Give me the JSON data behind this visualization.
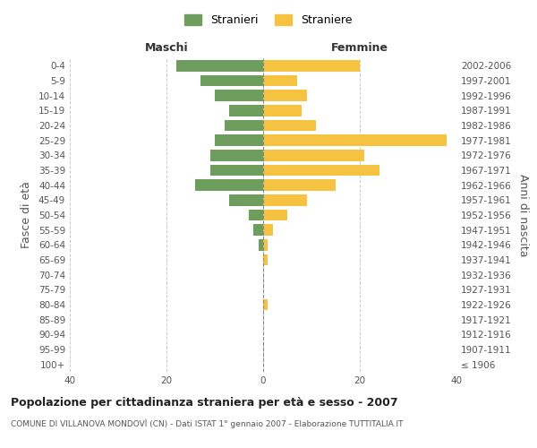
{
  "age_groups": [
    "100+",
    "95-99",
    "90-94",
    "85-89",
    "80-84",
    "75-79",
    "70-74",
    "65-69",
    "60-64",
    "55-59",
    "50-54",
    "45-49",
    "40-44",
    "35-39",
    "30-34",
    "25-29",
    "20-24",
    "15-19",
    "10-14",
    "5-9",
    "0-4"
  ],
  "birth_years": [
    "≤ 1906",
    "1907-1911",
    "1912-1916",
    "1917-1921",
    "1922-1926",
    "1927-1931",
    "1932-1936",
    "1937-1941",
    "1942-1946",
    "1947-1951",
    "1952-1956",
    "1957-1961",
    "1962-1966",
    "1967-1971",
    "1972-1976",
    "1977-1981",
    "1982-1986",
    "1987-1991",
    "1992-1996",
    "1997-2001",
    "2002-2006"
  ],
  "maschi": [
    0,
    0,
    0,
    0,
    0,
    0,
    0,
    0,
    1,
    2,
    3,
    7,
    14,
    11,
    11,
    10,
    8,
    7,
    10,
    13,
    18
  ],
  "femmine": [
    0,
    0,
    0,
    0,
    1,
    0,
    0,
    1,
    1,
    2,
    5,
    9,
    15,
    24,
    21,
    38,
    11,
    8,
    9,
    7,
    20
  ],
  "maschi_color": "#6e9e5e",
  "femmine_color": "#f5c242",
  "background_color": "#ffffff",
  "grid_color": "#cccccc",
  "title": "Popolazione per cittadinanza straniera per età e sesso - 2007",
  "subtitle": "COMUNE DI VILLANOVA MONDOVÌ (CN) - Dati ISTAT 1° gennaio 2007 - Elaborazione TUTTITALIA.IT",
  "xlabel_left": "Maschi",
  "xlabel_right": "Femmine",
  "ylabel_left": "Fasce di età",
  "ylabel_right": "Anni di nascita",
  "legend_maschi": "Stranieri",
  "legend_femmine": "Straniere",
  "xlim": 40,
  "tick_fontsize": 7.5,
  "label_fontsize": 9
}
